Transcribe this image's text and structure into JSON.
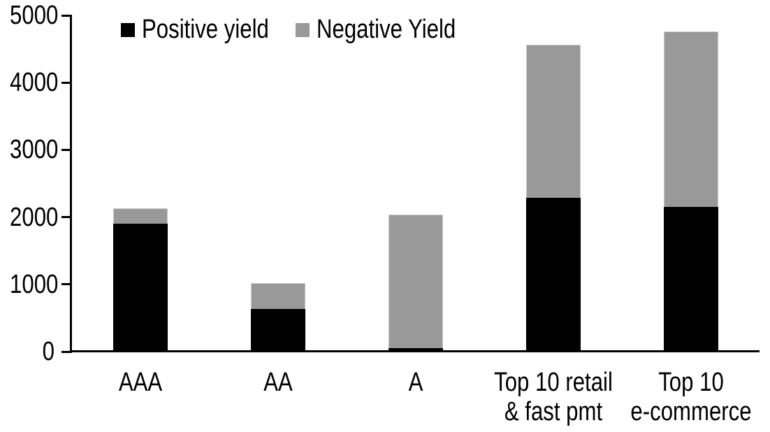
{
  "chart_data": {
    "type": "bar",
    "stacked": true,
    "title": "",
    "categories": [
      "AAA",
      "AA",
      "A",
      "Top 10 retail & fast pmt",
      "Top 10 e-commerce"
    ],
    "category_label_lines": [
      [
        "AAA"
      ],
      [
        "AA"
      ],
      [
        "A"
      ],
      [
        "Top 10 retail",
        "& fast pmt"
      ],
      [
        "Top 10",
        "e-commerce"
      ]
    ],
    "series": [
      {
        "name": "Positive yield",
        "color": "#000000",
        "values": [
          1900,
          630,
          50,
          2290,
          2150
        ]
      },
      {
        "name": "Negative Yield",
        "color": "#999999",
        "values": [
          230,
          390,
          1990,
          2270,
          2610
        ]
      }
    ],
    "totals": [
      2130,
      1020,
      2040,
      4560,
      4760
    ],
    "xlabel": "",
    "ylabel": "",
    "ylim": [
      0,
      5000
    ],
    "yticks": [
      0,
      1000,
      2000,
      3000,
      4000,
      5000
    ],
    "grid": false,
    "legend_position": "top",
    "axis_color": "#000000",
    "background_color": "#ffffff"
  }
}
